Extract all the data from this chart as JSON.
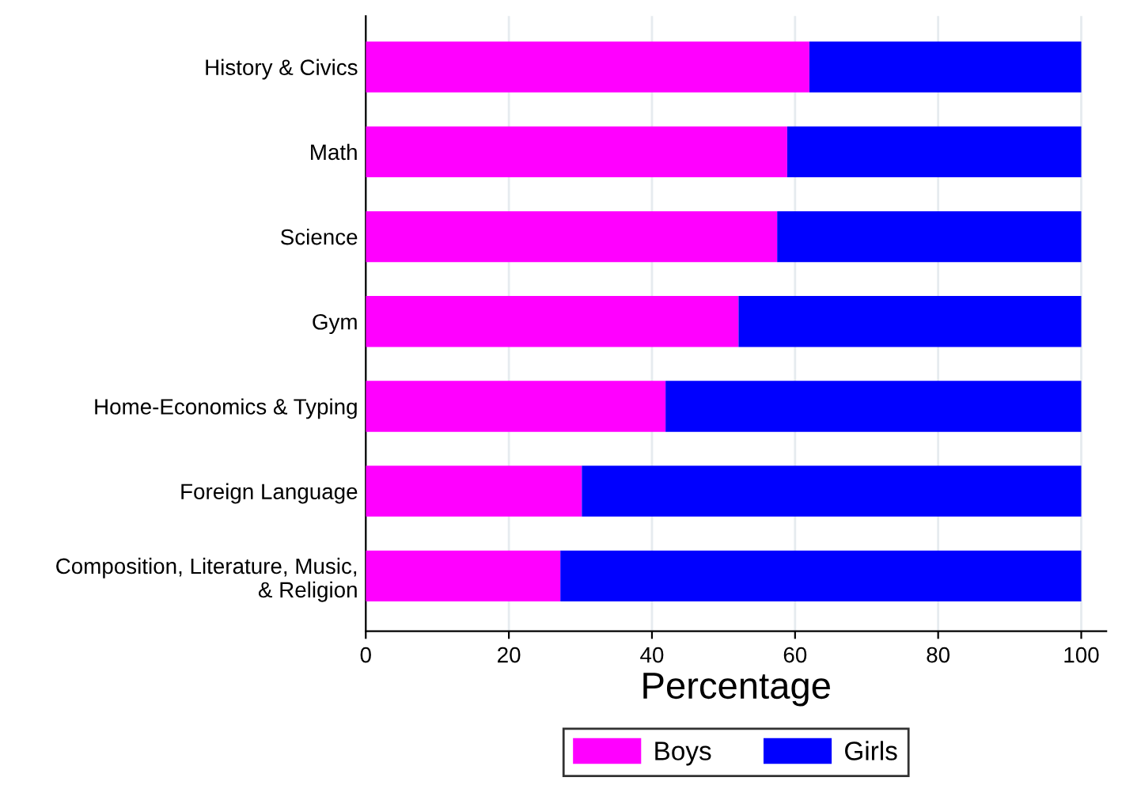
{
  "chart_data": {
    "type": "bar",
    "orientation": "horizontal",
    "stacked": true,
    "categories": [
      "History & Civics",
      "Math",
      "Science",
      "Gym",
      "Home-Economics & Typing",
      "Foreign Language",
      "Composition, Literature, Music,\n& Religion"
    ],
    "series": [
      {
        "name": "Boys",
        "color": "#ff00ff",
        "values": [
          62.0,
          58.9,
          57.5,
          52.1,
          41.9,
          30.2,
          27.2
        ]
      },
      {
        "name": "Girls",
        "color": "#0000ff",
        "values": [
          38.0,
          41.1,
          42.5,
          47.9,
          58.1,
          69.8,
          72.8
        ]
      }
    ],
    "xlabel": "Percentage",
    "xlim": [
      0,
      103.5
    ],
    "xticks": [
      0,
      20,
      40,
      60,
      80,
      100
    ],
    "grid": "x",
    "legend": "bottom"
  }
}
